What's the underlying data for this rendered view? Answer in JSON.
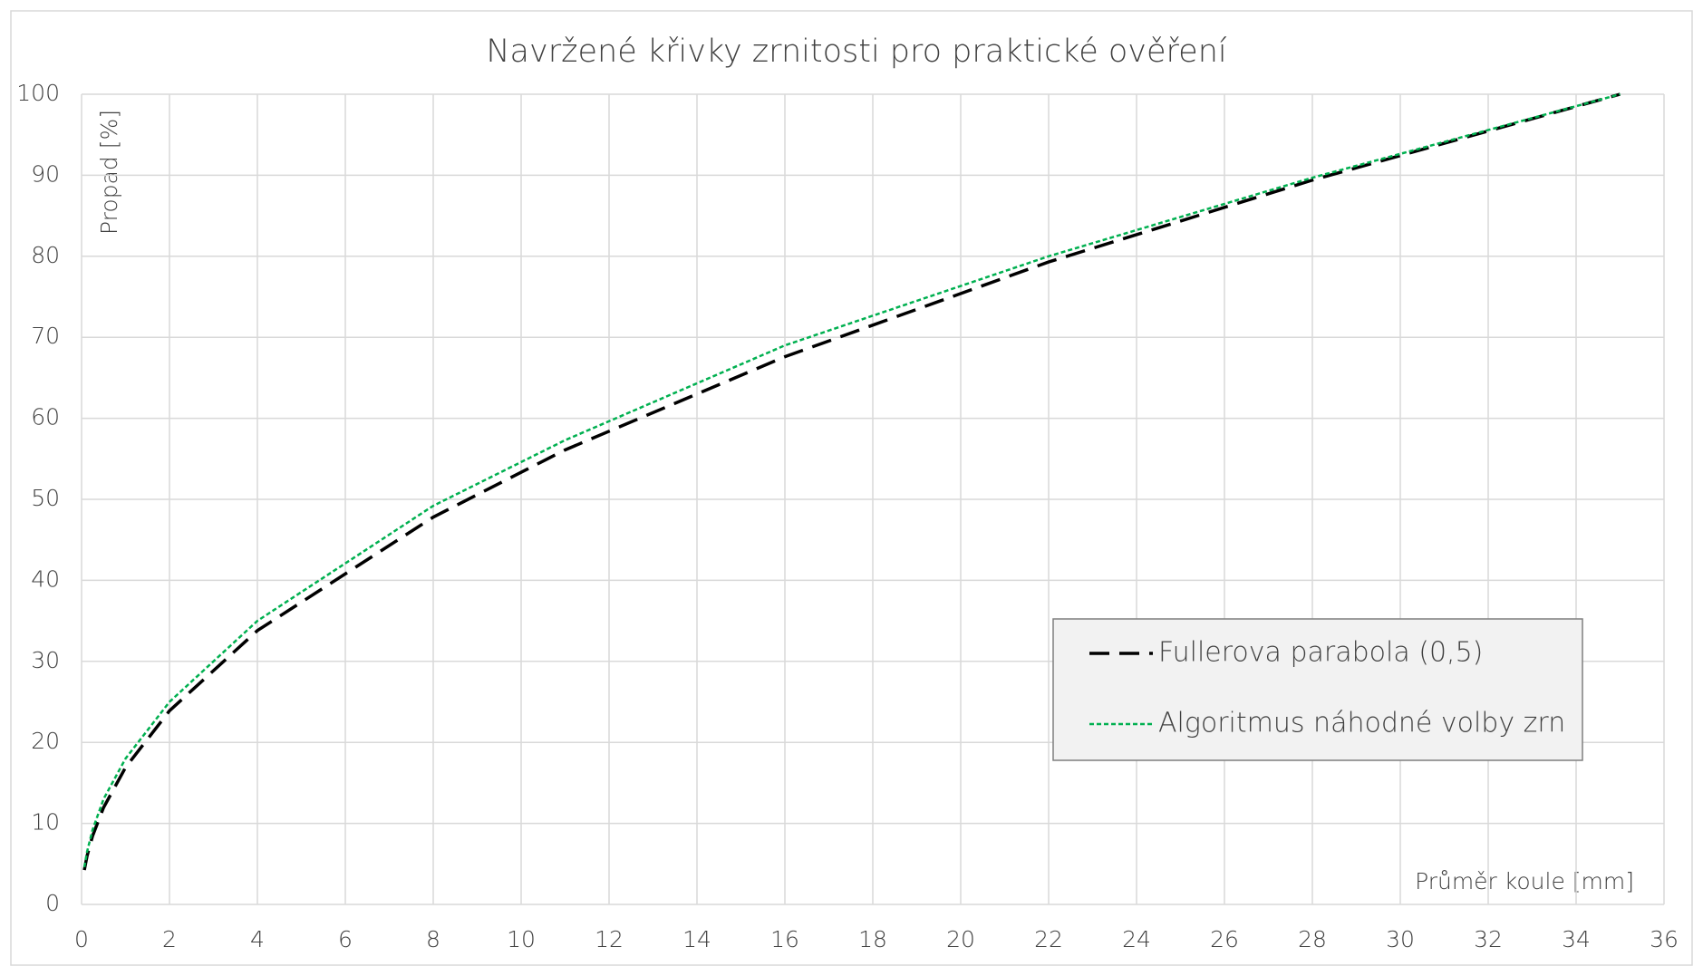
{
  "chart_data": {
    "type": "line",
    "title": "Navržené křivky zrnitosti pro praktické ověření",
    "y_label": "Propad [%]",
    "x_label": "Průměr koule [mm]",
    "x": [
      0.063,
      0.125,
      0.25,
      0.5,
      1,
      2,
      4,
      8,
      11,
      16,
      22,
      28,
      35
    ],
    "series": [
      {
        "name": "Fullerova parabola (0,5)",
        "color": "#000000",
        "line_style": "dashed",
        "values": [
          4.24,
          5.98,
          8.45,
          11.95,
          16.9,
          23.9,
          33.8,
          47.8,
          56.1,
          67.6,
          79.3,
          89.4,
          100
        ]
      },
      {
        "name": "Algoritmus náhodné volby zrn",
        "color": "#00b050",
        "line_style": "dotted",
        "values": [
          4.6,
          6.5,
          9.2,
          13,
          18,
          25,
          35,
          49.2,
          57.3,
          69,
          80,
          89.7,
          100
        ]
      }
    ],
    "xlim": [
      0,
      36
    ],
    "xticks": [
      0,
      2,
      4,
      6,
      8,
      10,
      12,
      14,
      16,
      18,
      20,
      22,
      24,
      26,
      28,
      30,
      32,
      34,
      36
    ],
    "ylim": [
      0,
      100
    ],
    "yticks": [
      0,
      10,
      20,
      30,
      40,
      50,
      60,
      70,
      80,
      90,
      100
    ],
    "grid": true,
    "legend_position": "lower right"
  }
}
